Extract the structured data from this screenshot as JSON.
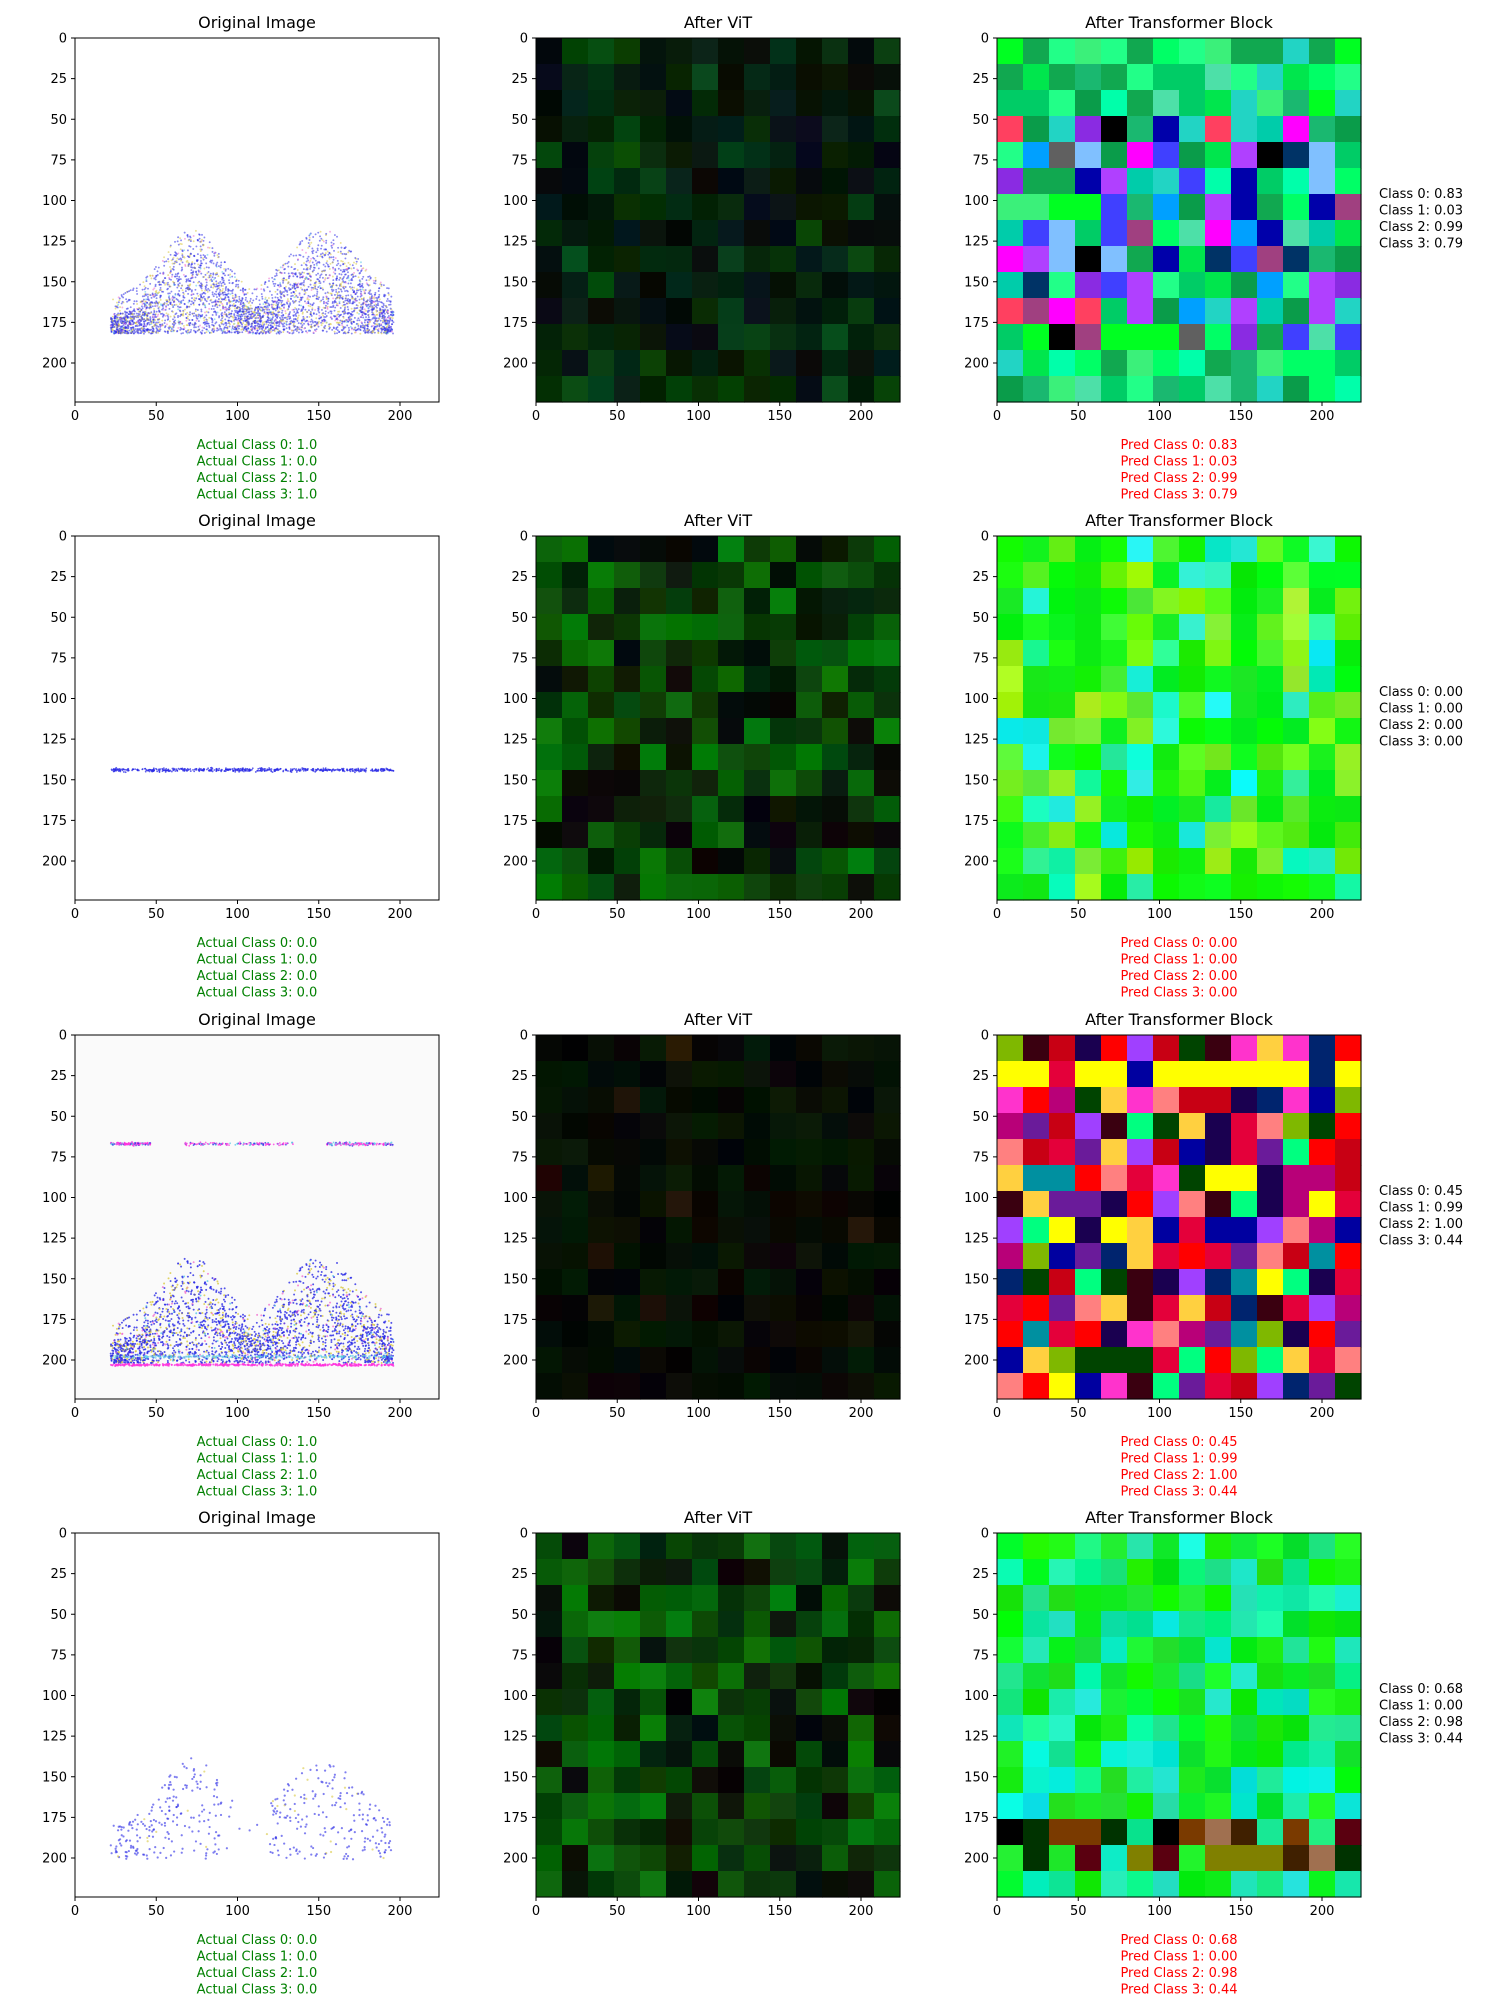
{
  "colors": {
    "actual_text": "#008000",
    "pred_text": "#ff0000",
    "side_text": "#000000",
    "original_bg": "#fafafa",
    "points_blue": "#2a2ae6",
    "points_yellow": "#d8c840",
    "points_pink": "#f070d0",
    "points_magenta": "#ff33dd",
    "points_cyan": "#55c8e8"
  },
  "chart_data": [
    {
      "type": "heatmap",
      "rows": 4,
      "cols": 3,
      "row_titles": [
        "Original Image",
        "After ViT",
        "After Transformer Block"
      ],
      "axes": {
        "xlim": [
          0,
          224
        ],
        "ylim": [
          224,
          0
        ],
        "xticks": [
          0,
          50,
          100,
          150,
          200
        ],
        "yticks": [
          0,
          25,
          50,
          75,
          100,
          125,
          150,
          175,
          200
        ],
        "grid": false
      },
      "samples": [
        {
          "original_kind": "two-humps-dense",
          "vit_style": "dark",
          "transformer_style": "mixed-colors",
          "actual": [
            "Actual Class 0: 1.0",
            "Actual Class 1: 0.0",
            "Actual Class 2: 1.0",
            "Actual Class 3: 1.0"
          ],
          "pred": [
            "Pred Class 0: 0.83",
            "Pred Class 1: 0.03",
            "Pred Class 2: 0.99",
            "Pred Class 3: 0.79"
          ],
          "side": [
            "Class 0: 0.83",
            "Class 1: 0.03",
            "Class 2: 0.99",
            "Class 3: 0.79"
          ]
        },
        {
          "original_kind": "flat-line",
          "vit_style": "green",
          "transformer_style": "bright-green",
          "actual": [
            "Actual Class 0: 0.0",
            "Actual Class 1: 0.0",
            "Actual Class 2: 0.0",
            "Actual Class 3: 0.0"
          ],
          "pred": [
            "Pred Class 0: 0.00",
            "Pred Class 1: 0.00",
            "Pred Class 2: 0.00",
            "Pred Class 3: 0.00"
          ],
          "side": [
            "Class 0: 0.00",
            "Class 1: 0.00",
            "Class 2: 0.00",
            "Class 3: 0.00"
          ]
        },
        {
          "original_kind": "two-humps-with-bands",
          "vit_style": "very-dark",
          "transformer_style": "saturated-mixed",
          "actual": [
            "Actual Class 0: 1.0",
            "Actual Class 1: 1.0",
            "Actual Class 2: 1.0",
            "Actual Class 3: 1.0"
          ],
          "pred": [
            "Pred Class 0: 0.45",
            "Pred Class 1: 0.99",
            "Pred Class 2: 1.00",
            "Pred Class 3: 0.44"
          ],
          "side": [
            "Class 0: 0.45",
            "Class 1: 0.99",
            "Class 2: 1.00",
            "Class 3: 0.44"
          ]
        },
        {
          "original_kind": "two-humps-sparse",
          "vit_style": "green",
          "transformer_style": "green-with-dark-bottom",
          "actual": [
            "Actual Class 0: 0.0",
            "Actual Class 1: 0.0",
            "Actual Class 2: 1.0",
            "Actual Class 3: 0.0"
          ],
          "pred": [
            "Pred Class 0: 0.68",
            "Pred Class 1: 0.00",
            "Pred Class 2: 0.98",
            "Pred Class 3: 0.44"
          ],
          "side": [
            "Class 0: 0.68",
            "Class 1: 0.00",
            "Class 2: 0.98",
            "Class 3: 0.44"
          ]
        }
      ]
    }
  ]
}
